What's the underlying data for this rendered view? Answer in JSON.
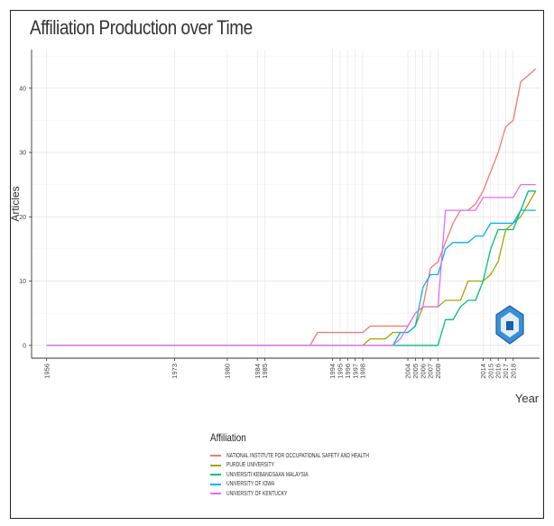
{
  "chart_data": {
    "type": "line",
    "title": "Affiliation Production over Time",
    "xlabel": "Year",
    "ylabel": "Articles",
    "ylim": [
      -2,
      46
    ],
    "xlim": [
      1954,
      2021.5
    ],
    "grid": true,
    "x_ticks": [
      1956,
      1973,
      1980,
      1984,
      1985,
      1994,
      1995,
      1996,
      1997,
      1998,
      2004,
      2005,
      2006,
      2007,
      2008,
      2014,
      2015,
      2016,
      2017,
      2018
    ],
    "y_ticks": [
      0,
      10,
      20,
      30,
      40
    ],
    "legend_title": "Affiliation",
    "legend_position": "bottom",
    "series": [
      {
        "name": "NATIONAL INSTITUTE FOR OCCUPATIONAL SAFETY AND HEALTH",
        "color": "#F8766D",
        "x": [
          1956,
          1991,
          1992,
          1998,
          1999,
          2004,
          2005,
          2006,
          2007,
          2008,
          2009,
          2010,
          2011,
          2012,
          2013,
          2014,
          2015,
          2016,
          2017,
          2018,
          2019,
          2020,
          2021
        ],
        "y": [
          0,
          0,
          2,
          2,
          3,
          3,
          5,
          6,
          12,
          13,
          16,
          19,
          21,
          21,
          22,
          24,
          27,
          30,
          34,
          35,
          41,
          42,
          43
        ]
      },
      {
        "name": "PURDUE UNIVERSITY",
        "color": "#A3A500",
        "x": [
          1956,
          1998,
          1999,
          2001,
          2002,
          2004,
          2005,
          2006,
          2007,
          2008,
          2009,
          2011,
          2012,
          2013,
          2014,
          2015,
          2016,
          2017,
          2018,
          2019,
          2020,
          2021
        ],
        "y": [
          0,
          0,
          1,
          1,
          2,
          2,
          3,
          6,
          6,
          6,
          7,
          7,
          10,
          10,
          10,
          11,
          13,
          18,
          19,
          20,
          22,
          24
        ]
      },
      {
        "name": "UNIVERSITI KEBANGSAAN MALAYSIA",
        "color": "#00BF7D",
        "x": [
          1956,
          2008,
          2009,
          2010,
          2011,
          2012,
          2013,
          2014,
          2015,
          2016,
          2017,
          2018,
          2019,
          2020,
          2021
        ],
        "y": [
          0,
          0,
          4,
          4,
          6,
          7,
          7,
          10,
          15,
          18,
          18,
          18,
          21,
          24,
          24
        ]
      },
      {
        "name": "UNIVERSITY OF IOWA",
        "color": "#00B0F6",
        "x": [
          1956,
          2002,
          2003,
          2004,
          2005,
          2006,
          2007,
          2008,
          2009,
          2010,
          2011,
          2012,
          2013,
          2014,
          2015,
          2016,
          2017,
          2018,
          2019,
          2020,
          2021
        ],
        "y": [
          0,
          0,
          2,
          2,
          3,
          9,
          11,
          11,
          15,
          16,
          16,
          16,
          17,
          17,
          19,
          19,
          19,
          19,
          21,
          21,
          21
        ]
      },
      {
        "name": "UNIVERSITY OF KENTUCKY",
        "color": "#E76BF3",
        "x": [
          1956,
          2002,
          2003,
          2004,
          2005,
          2006,
          2007,
          2008,
          2009,
          2010,
          2011,
          2012,
          2013,
          2014,
          2015,
          2016,
          2017,
          2018,
          2019,
          2020,
          2021
        ],
        "y": [
          0,
          0,
          1,
          3,
          5,
          6,
          6,
          6,
          21,
          21,
          21,
          21,
          21,
          23,
          23,
          23,
          23,
          23,
          25,
          25,
          25
        ]
      }
    ]
  }
}
